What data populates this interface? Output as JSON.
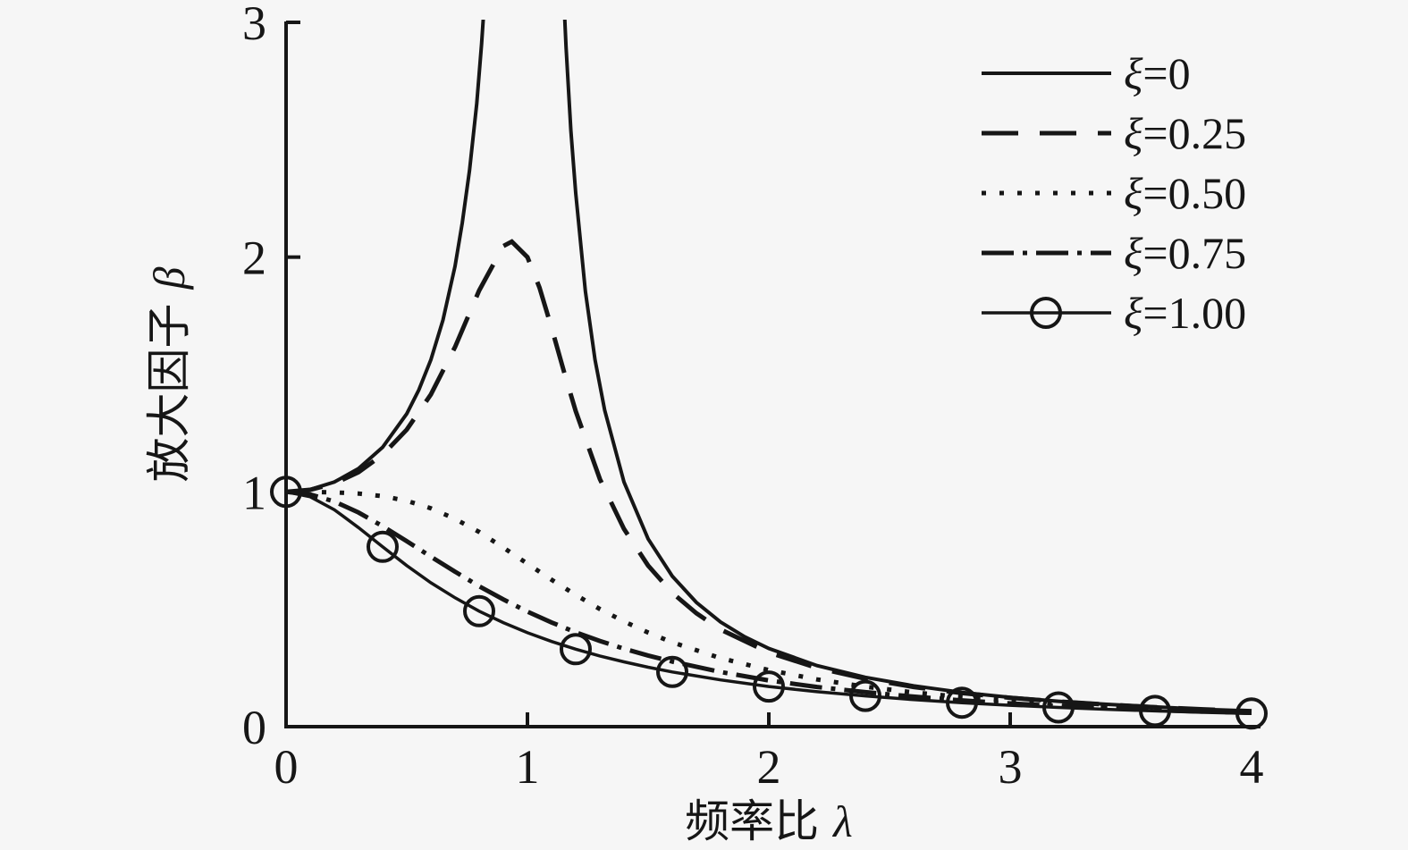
{
  "figure": {
    "background": "#f6f6f6",
    "ink": "#161616"
  },
  "chart_data": {
    "type": "line",
    "title": "",
    "xlabel": "频率比 λ",
    "ylabel": "放大因子 β",
    "xlabel_text": "频率比",
    "xlabel_symbol": "λ",
    "ylabel_text": "放大因子",
    "ylabel_symbol": "β",
    "xlim": [
      0,
      4
    ],
    "ylim": [
      0,
      3
    ],
    "x_ticks": [
      0,
      1,
      2,
      3,
      4
    ],
    "y_ticks": [
      0,
      1,
      2,
      3
    ],
    "grid": false,
    "legend_position": "top-right",
    "series": [
      {
        "id": "xi-0",
        "label": "ξ=0",
        "xi_value": "0",
        "style": "solid",
        "segments": [
          [
            [
              0,
              1
            ],
            [
              0.1,
              1.01
            ],
            [
              0.2,
              1.042
            ],
            [
              0.3,
              1.099
            ],
            [
              0.4,
              1.19
            ],
            [
              0.5,
              1.333
            ],
            [
              0.55,
              1.434
            ],
            [
              0.6,
              1.563
            ],
            [
              0.65,
              1.732
            ],
            [
              0.7,
              1.961
            ],
            [
              0.73,
              2.146
            ],
            [
              0.76,
              2.369
            ],
            [
              0.79,
              2.654
            ],
            [
              0.81,
              2.908
            ],
            [
              0.83,
              3.214
            ],
            [
              0.84,
              3.4
            ]
          ],
          [
            [
              1.14,
              3.34
            ],
            [
              1.16,
              2.894
            ],
            [
              1.18,
              2.538
            ],
            [
              1.2,
              2.273
            ],
            [
              1.24,
              1.855
            ],
            [
              1.28,
              1.563
            ],
            [
              1.32,
              1.348
            ],
            [
              1.4,
              1.042
            ],
            [
              1.5,
              0.8
            ],
            [
              1.6,
              0.641
            ],
            [
              1.7,
              0.529
            ],
            [
              1.8,
              0.446
            ],
            [
              1.9,
              0.383
            ],
            [
              2.0,
              0.333
            ],
            [
              2.2,
              0.26
            ],
            [
              2.4,
              0.21
            ],
            [
              2.6,
              0.174
            ],
            [
              2.8,
              0.146
            ],
            [
              3.0,
              0.125
            ],
            [
              3.2,
              0.108
            ],
            [
              3.4,
              0.095
            ],
            [
              3.6,
              0.084
            ],
            [
              3.8,
              0.074
            ],
            [
              4.0,
              0.067
            ]
          ]
        ]
      },
      {
        "id": "xi-025",
        "label": "ξ=0.25",
        "xi_value": "0.25",
        "style": "dashed",
        "segments": [
          [
            [
              0,
              1
            ],
            [
              0.1,
              1.009
            ],
            [
              0.2,
              1.036
            ],
            [
              0.3,
              1.084
            ],
            [
              0.4,
              1.158
            ],
            [
              0.5,
              1.265
            ],
            [
              0.6,
              1.415
            ],
            [
              0.7,
              1.617
            ],
            [
              0.8,
              1.858
            ],
            [
              0.9,
              2.047
            ],
            [
              0.935,
              2.066
            ],
            [
              1.0,
              2.0
            ],
            [
              1.05,
              1.87
            ],
            [
              1.1,
              1.699
            ],
            [
              1.15,
              1.517
            ],
            [
              1.2,
              1.344
            ],
            [
              1.3,
              1.055
            ],
            [
              1.4,
              0.842
            ],
            [
              1.5,
              0.686
            ],
            [
              1.6,
              0.57
            ],
            [
              1.7,
              0.483
            ],
            [
              1.8,
              0.414
            ],
            [
              2.0,
              0.316
            ],
            [
              2.2,
              0.25
            ],
            [
              2.4,
              0.204
            ],
            [
              2.6,
              0.169
            ],
            [
              2.8,
              0.143
            ],
            [
              3.0,
              0.123
            ],
            [
              3.2,
              0.107
            ],
            [
              3.4,
              0.094
            ],
            [
              3.6,
              0.083
            ],
            [
              3.8,
              0.074
            ],
            [
              4.0,
              0.066
            ]
          ]
        ]
      },
      {
        "id": "xi-050",
        "label": "ξ=0.50",
        "xi_value": "0.50",
        "style": "dotted",
        "segments": [
          [
            [
              0,
              1
            ],
            [
              0.1,
              1.0
            ],
            [
              0.2,
              0.998
            ],
            [
              0.3,
              0.993
            ],
            [
              0.4,
              0.982
            ],
            [
              0.5,
              0.962
            ],
            [
              0.6,
              0.93
            ],
            [
              0.7,
              0.885
            ],
            [
              0.8,
              0.829
            ],
            [
              0.9,
              0.763
            ],
            [
              1.0,
              0.694
            ],
            [
              1.1,
              0.626
            ],
            [
              1.2,
              0.561
            ],
            [
              1.3,
              0.501
            ],
            [
              1.4,
              0.448
            ],
            [
              1.5,
              0.401
            ],
            [
              1.6,
              0.359
            ],
            [
              1.8,
              0.292
            ],
            [
              2.0,
              0.241
            ],
            [
              2.2,
              0.201
            ],
            [
              2.4,
              0.17
            ],
            [
              2.6,
              0.146
            ],
            [
              2.8,
              0.126
            ],
            [
              3.0,
              0.11
            ],
            [
              3.2,
              0.097
            ],
            [
              3.4,
              0.086
            ],
            [
              3.6,
              0.077
            ],
            [
              3.8,
              0.069
            ],
            [
              4.0,
              0.062
            ]
          ]
        ]
      },
      {
        "id": "xi-075",
        "label": "ξ=0.75",
        "xi_value": "0.75",
        "style": "dashdot",
        "segments": [
          [
            [
              0,
              1
            ],
            [
              0.1,
              0.989
            ],
            [
              0.2,
              0.959
            ],
            [
              0.3,
              0.912
            ],
            [
              0.4,
              0.854
            ],
            [
              0.5,
              0.79
            ],
            [
              0.6,
              0.724
            ],
            [
              0.7,
              0.66
            ],
            [
              0.8,
              0.598
            ],
            [
              0.9,
              0.542
            ],
            [
              1.0,
              0.49
            ],
            [
              1.1,
              0.444
            ],
            [
              1.2,
              0.402
            ],
            [
              1.3,
              0.365
            ],
            [
              1.4,
              0.332
            ],
            [
              1.5,
              0.303
            ],
            [
              1.6,
              0.277
            ],
            [
              1.8,
              0.233
            ],
            [
              2.0,
              0.197
            ],
            [
              2.2,
              0.169
            ],
            [
              2.4,
              0.147
            ],
            [
              2.6,
              0.128
            ],
            [
              2.8,
              0.112
            ],
            [
              3.0,
              0.099
            ],
            [
              3.2,
              0.088
            ],
            [
              3.4,
              0.079
            ],
            [
              3.6,
              0.071
            ],
            [
              3.8,
              0.064
            ],
            [
              4.0,
              0.059
            ]
          ]
        ]
      },
      {
        "id": "xi-100",
        "label": "ξ=1.00",
        "xi_value": "1.00",
        "style": "solid-circle",
        "segments": [
          [
            [
              0,
              1
            ],
            [
              0.1,
              0.979
            ],
            [
              0.2,
              0.924
            ],
            [
              0.3,
              0.848
            ],
            [
              0.4,
              0.766
            ],
            [
              0.5,
              0.686
            ],
            [
              0.6,
              0.613
            ],
            [
              0.7,
              0.549
            ],
            [
              0.8,
              0.492
            ],
            [
              0.9,
              0.443
            ],
            [
              1.0,
              0.4
            ],
            [
              1.1,
              0.363
            ],
            [
              1.2,
              0.33
            ],
            [
              1.3,
              0.301
            ],
            [
              1.4,
              0.276
            ],
            [
              1.5,
              0.253
            ],
            [
              1.6,
              0.233
            ],
            [
              1.8,
              0.199
            ],
            [
              2.0,
              0.171
            ],
            [
              2.2,
              0.149
            ],
            [
              2.4,
              0.131
            ],
            [
              2.6,
              0.115
            ],
            [
              2.8,
              0.102
            ],
            [
              3.0,
              0.091
            ],
            [
              3.2,
              0.082
            ],
            [
              3.4,
              0.074
            ],
            [
              3.6,
              0.067
            ],
            [
              3.8,
              0.061
            ],
            [
              4.0,
              0.056
            ]
          ]
        ],
        "markers": [
          [
            0,
            1
          ],
          [
            0.4,
            0.766
          ],
          [
            0.8,
            0.492
          ],
          [
            1.2,
            0.33
          ],
          [
            1.6,
            0.233
          ],
          [
            2.0,
            0.171
          ],
          [
            2.4,
            0.131
          ],
          [
            2.8,
            0.102
          ],
          [
            3.2,
            0.082
          ],
          [
            3.6,
            0.067
          ],
          [
            4.0,
            0.056
          ]
        ]
      }
    ]
  }
}
